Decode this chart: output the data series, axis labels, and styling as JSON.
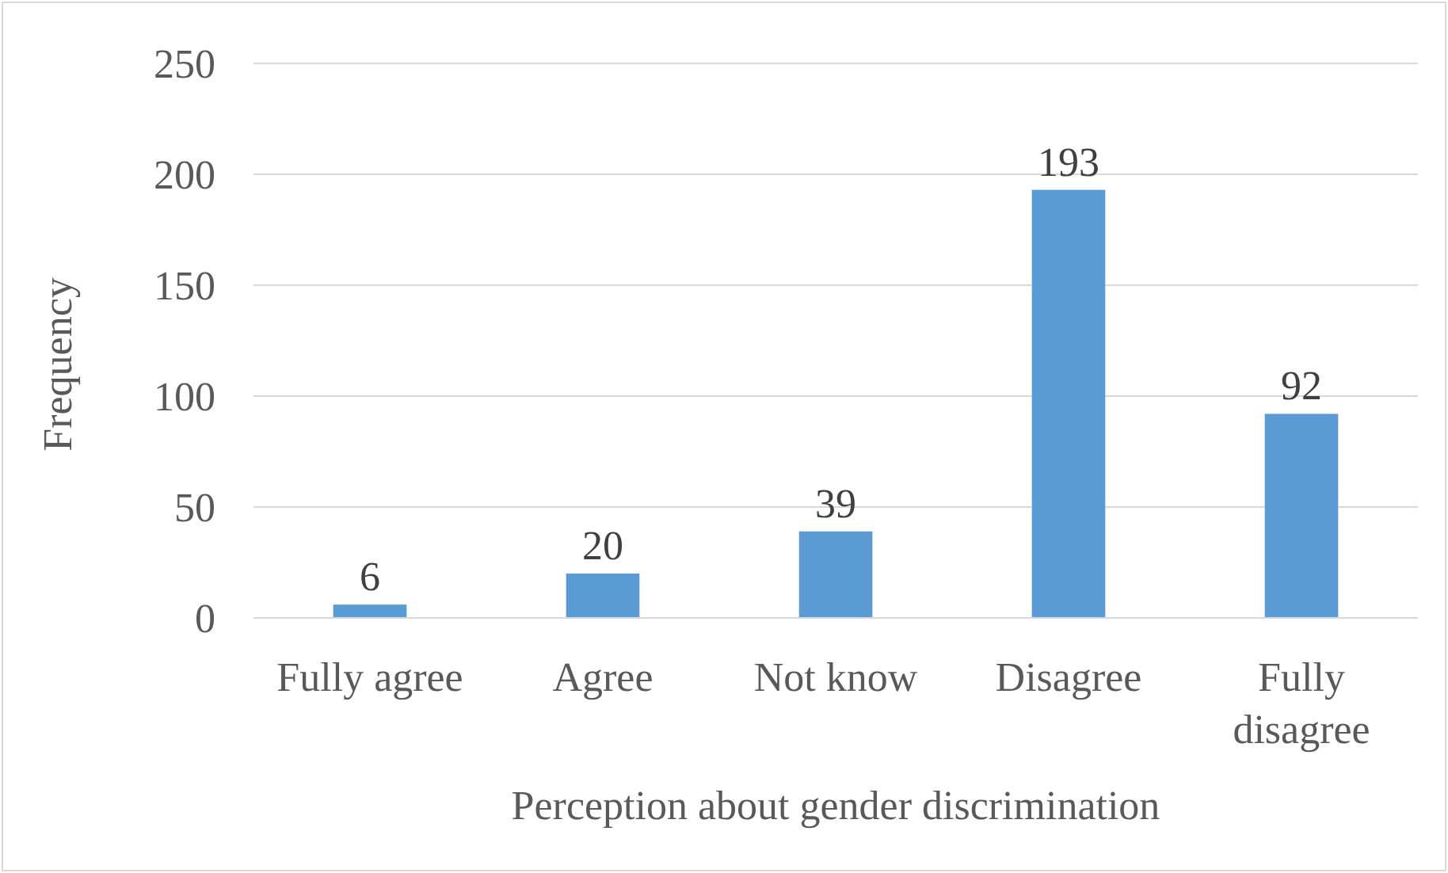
{
  "chart_data": {
    "type": "bar",
    "xlabel": "Perception about gender discrimination",
    "ylabel": "Frequency",
    "categories": [
      "Fully agree",
      "Agree",
      "Not know",
      "Disagree",
      "Fully disagree"
    ],
    "values": [
      6,
      20,
      39,
      193,
      92
    ],
    "color": "#5b9bd5",
    "ylim": [
      0,
      250
    ],
    "yticks": [
      0,
      50,
      100,
      150,
      200,
      250
    ],
    "grid": "y",
    "data_labels": true
  }
}
